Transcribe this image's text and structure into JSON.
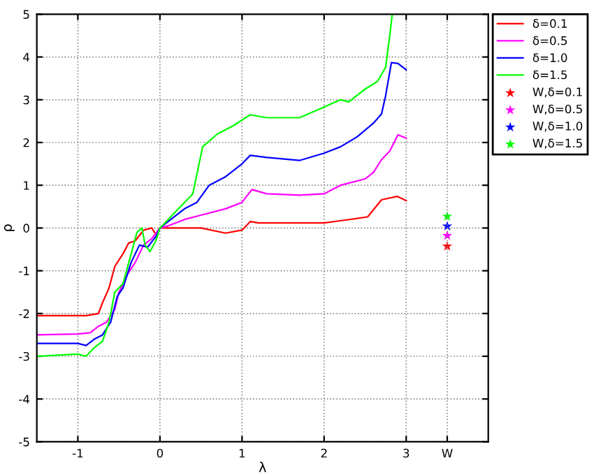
{
  "chart_data": {
    "type": "line",
    "xlabel": "λ",
    "ylabel": "ρ",
    "xlim": [
      -1.5,
      4
    ],
    "ylim": [
      -5,
      5
    ],
    "xticks": [
      -1,
      0,
      1,
      2,
      3,
      {
        "value": 3.5,
        "label": "W"
      }
    ],
    "yticks": [
      -5,
      -4,
      -3,
      -2,
      -1,
      0,
      1,
      2,
      3,
      4,
      5
    ],
    "grid": true,
    "legend": "top right",
    "line_style": "solid",
    "series": [
      {
        "name": "δ=0.1",
        "color": "#ff0000",
        "x": [
          -1.5,
          -0.9,
          -0.75,
          -0.7,
          -0.62,
          -0.55,
          -0.45,
          -0.38,
          -0.3,
          -0.2,
          -0.1,
          -0.05,
          0,
          0.2,
          0.5,
          0.8,
          1.0,
          1.1,
          1.2,
          1.5,
          2.0,
          2.2,
          2.53,
          2.7,
          2.89,
          3.0
        ],
        "values": [
          -2.05,
          -2.05,
          -2.0,
          -1.75,
          -1.4,
          -0.9,
          -0.6,
          -0.35,
          -0.3,
          -0.05,
          0.0,
          -0.15,
          0.0,
          0.0,
          0.0,
          -0.12,
          -0.05,
          0.15,
          0.12,
          0.12,
          0.12,
          0.17,
          0.26,
          0.66,
          0.74,
          0.64
        ]
      },
      {
        "name": "δ=0.5",
        "color": "#ff00ff",
        "x": [
          -1.5,
          -1.0,
          -0.85,
          -0.75,
          -0.65,
          -0.55,
          -0.5,
          -0.4,
          -0.3,
          -0.2,
          -0.1,
          0,
          0.1,
          0.3,
          0.5,
          0.8,
          1.0,
          1.12,
          1.3,
          1.7,
          2.0,
          2.2,
          2.5,
          2.6,
          2.7,
          2.8,
          2.9,
          3.0
        ],
        "values": [
          -2.5,
          -2.48,
          -2.45,
          -2.3,
          -2.2,
          -1.9,
          -1.5,
          -1.1,
          -0.8,
          -0.4,
          -0.25,
          0.0,
          0.05,
          0.2,
          0.3,
          0.45,
          0.6,
          0.9,
          0.8,
          0.77,
          0.8,
          1.0,
          1.15,
          1.3,
          1.6,
          1.8,
          2.18,
          2.1
        ]
      },
      {
        "name": "δ=1.0",
        "color": "#0000ff",
        "x": [
          -1.5,
          -1.0,
          -0.9,
          -0.8,
          -0.7,
          -0.6,
          -0.52,
          -0.45,
          -0.35,
          -0.25,
          -0.15,
          -0.05,
          0,
          0.1,
          0.3,
          0.45,
          0.6,
          0.8,
          1.0,
          1.1,
          1.3,
          1.7,
          2.0,
          2.2,
          2.4,
          2.6,
          2.7,
          2.75,
          2.82,
          2.9,
          3.0
        ],
        "values": [
          -2.7,
          -2.7,
          -2.75,
          -2.6,
          -2.5,
          -2.2,
          -1.6,
          -1.4,
          -0.8,
          -0.4,
          -0.45,
          -0.2,
          0.0,
          0.15,
          0.45,
          0.6,
          1.0,
          1.2,
          1.5,
          1.7,
          1.65,
          1.58,
          1.75,
          1.9,
          2.13,
          2.45,
          2.67,
          3.1,
          3.87,
          3.85,
          3.7
        ]
      },
      {
        "name": "δ=1.5",
        "color": "#00ff00",
        "x": [
          -1.5,
          -1.0,
          -0.9,
          -0.8,
          -0.7,
          -0.62,
          -0.55,
          -0.45,
          -0.35,
          -0.28,
          -0.22,
          -0.18,
          -0.12,
          -0.05,
          0,
          0.1,
          0.3,
          0.4,
          0.52,
          0.7,
          0.9,
          1.1,
          1.3,
          1.7,
          2.0,
          2.2,
          2.3,
          2.5,
          2.65,
          2.75,
          2.8,
          2.83
        ],
        "values": [
          -3.0,
          -2.95,
          -3.0,
          -2.8,
          -2.65,
          -2.2,
          -1.5,
          -1.3,
          -0.6,
          -0.1,
          0.0,
          -0.4,
          -0.55,
          -0.3,
          0.0,
          0.2,
          0.6,
          0.8,
          1.9,
          2.2,
          2.4,
          2.65,
          2.58,
          2.58,
          2.83,
          3.0,
          2.95,
          3.25,
          3.43,
          3.76,
          4.5,
          5.0
        ]
      },
      {
        "type": "scatter",
        "marker": "star",
        "name": "W,δ=0.1",
        "color": "#ff0000",
        "x": [
          3.5
        ],
        "values": [
          -0.43
        ]
      },
      {
        "type": "scatter",
        "marker": "star",
        "name": "W,δ=0.5",
        "color": "#ff00ff",
        "x": [
          3.5
        ],
        "values": [
          -0.18
        ]
      },
      {
        "type": "scatter",
        "marker": "star",
        "name": "W,δ=1.0",
        "color": "#0000ff",
        "x": [
          3.5
        ],
        "values": [
          0.04
        ]
      },
      {
        "type": "scatter",
        "marker": "star",
        "name": "W,δ=1.5",
        "color": "#00ff00",
        "x": [
          3.5
        ],
        "values": [
          0.27
        ]
      }
    ]
  }
}
